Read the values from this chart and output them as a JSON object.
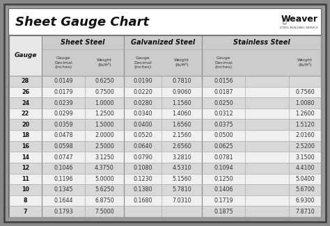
{
  "title": "Sheet Gauge Chart",
  "bg_outer": "#888888",
  "bg_table": "#f0f0f0",
  "bg_white": "#ffffff",
  "bg_header": "#cccccc",
  "bg_row_dark": "#d8d8d8",
  "bg_row_light": "#f0f0f0",
  "border_dark": "#444444",
  "border_mid": "#888888",
  "text_dark": "#111111",
  "text_mid": "#333333",
  "gauges": [
    28,
    26,
    24,
    22,
    20,
    18,
    16,
    14,
    12,
    11,
    10,
    8,
    7
  ],
  "sheet_steel_decimal": [
    "0.0149",
    "0.0179",
    "0.0239",
    "0.0299",
    "0.0359",
    "0.0478",
    "0.0598",
    "0.0747",
    "0.1046",
    "0.1196",
    "0.1345",
    "0.1644",
    "0.1793"
  ],
  "sheet_steel_weight": [
    "0.6250",
    "0.7500",
    "1.0000",
    "1.2500",
    "1.5000",
    "2.0000",
    "2.5000",
    "3.1250",
    "4.3750",
    "5.0000",
    "5.6250",
    "6.8750",
    "7.5000"
  ],
  "galvanized_decimal": [
    "0.0190",
    "0.0220",
    "0.0280",
    "0.0340",
    "0.0400",
    "0.0520",
    "0.0640",
    "0.0790",
    "0.1080",
    "0.1230",
    "0.1380",
    "0.1680",
    ""
  ],
  "galvanized_weight": [
    "0.7810",
    "0.9060",
    "1.1560",
    "1.4060",
    "1.6560",
    "2.1560",
    "2.6560",
    "3.2810",
    "4.5310",
    "5.1560",
    "5.7810",
    "7.0310",
    ""
  ],
  "stainless_decimal": [
    "0.0156",
    "0.0187",
    "0.0250",
    "0.0312",
    "0.0375",
    "0.0500",
    "0.0625",
    "0.0781",
    "0.1094",
    "0.1250",
    "0.1406",
    "0.1719",
    "0.1875"
  ],
  "stainless_weight": [
    "",
    "0.7560",
    "1.0080",
    "1.2600",
    "1.5120",
    "2.0160",
    "2.5200",
    "3.1500",
    "4.4100",
    "5.0400",
    "5.6700",
    "6.9300",
    "7.8710"
  ]
}
